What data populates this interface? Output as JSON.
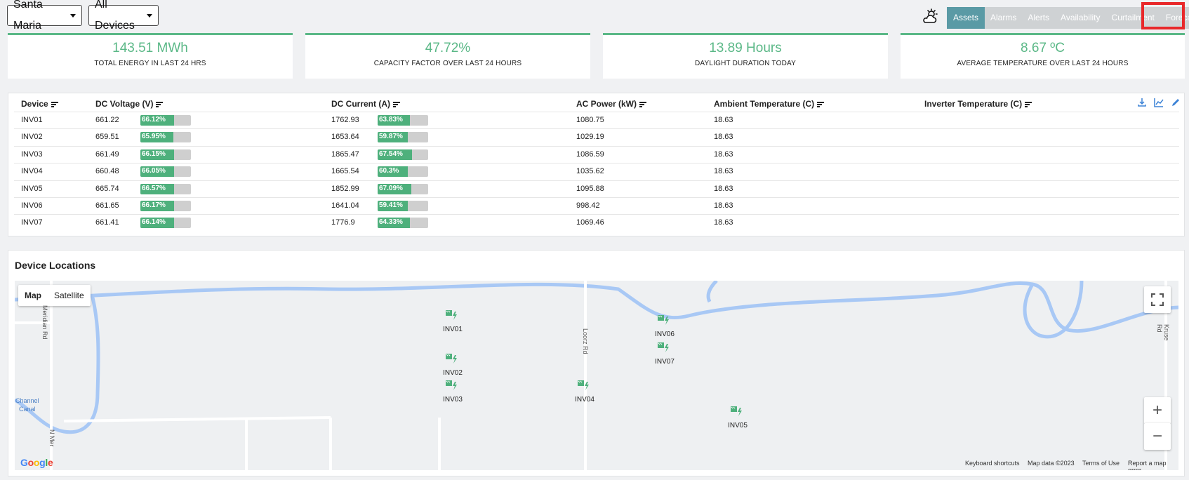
{
  "filters": {
    "site": "Santa Maria",
    "devices": "All Devices"
  },
  "nav": {
    "weather_icon": "weather-cloud-sun-icon",
    "tabs": [
      "Assets",
      "Alarms",
      "Alerts",
      "Availability",
      "Curtailment",
      "Forecast"
    ],
    "active_tab": "Assets",
    "highlighted_tab": "Forecast"
  },
  "kpis": [
    {
      "value": "143.51 MWh",
      "label": "TOTAL ENERGY IN LAST 24 HRS"
    },
    {
      "value": "47.72%",
      "label": "CAPACITY FACTOR OVER LAST 24 HOURS"
    },
    {
      "value": "13.89 Hours",
      "label": "DAYLIGHT DURATION TODAY"
    },
    {
      "value": "8.67 ºC",
      "label": "AVERAGE TEMPERATURE OVER LAST 24 HOURS"
    }
  ],
  "table": {
    "headers": [
      "Device",
      "DC Voltage (V)",
      "DC Current (A)",
      "AC Power (kW)",
      "Ambient Temperature (C)",
      "Inverter Temperature (C)"
    ],
    "rows": [
      {
        "device": "INV01",
        "dc_voltage": "661.22",
        "dc_voltage_pct": "66.12%",
        "dc_current": "1762.93",
        "dc_current_pct": "63.83%",
        "ac_power": "1080.75",
        "ambient": "18.63",
        "inverter": ""
      },
      {
        "device": "INV02",
        "dc_voltage": "659.51",
        "dc_voltage_pct": "65.95%",
        "dc_current": "1653.64",
        "dc_current_pct": "59.87%",
        "ac_power": "1029.19",
        "ambient": "18.63",
        "inverter": ""
      },
      {
        "device": "INV03",
        "dc_voltage": "661.49",
        "dc_voltage_pct": "66.15%",
        "dc_current": "1865.47",
        "dc_current_pct": "67.54%",
        "ac_power": "1086.59",
        "ambient": "18.63",
        "inverter": ""
      },
      {
        "device": "INV04",
        "dc_voltage": "660.48",
        "dc_voltage_pct": "66.05%",
        "dc_current": "1665.54",
        "dc_current_pct": "60.3%",
        "ac_power": "1035.62",
        "ambient": "18.63",
        "inverter": ""
      },
      {
        "device": "INV05",
        "dc_voltage": "665.74",
        "dc_voltage_pct": "66.57%",
        "dc_current": "1852.99",
        "dc_current_pct": "67.09%",
        "ac_power": "1095.88",
        "ambient": "18.63",
        "inverter": ""
      },
      {
        "device": "INV06",
        "dc_voltage": "661.65",
        "dc_voltage_pct": "66.17%",
        "dc_current": "1641.04",
        "dc_current_pct": "59.41%",
        "ac_power": "998.42",
        "ambient": "18.63",
        "inverter": ""
      },
      {
        "device": "INV07",
        "dc_voltage": "661.41",
        "dc_voltage_pct": "66.14%",
        "dc_current": "1776.9",
        "dc_current_pct": "64.33%",
        "ac_power": "1069.46",
        "ambient": "18.63",
        "inverter": ""
      }
    ],
    "toolbar_icons": [
      "download-icon",
      "chart-line-icon",
      "edit-pencil-icon"
    ]
  },
  "map": {
    "title": "Device Locations",
    "type_map": "Map",
    "type_satellite": "Satellite",
    "markers": [
      "INV01",
      "INV02",
      "INV03",
      "INV04",
      "INV05",
      "INV06",
      "INV07"
    ],
    "road_labels": [
      "Meridian Rd",
      "Loorz Rd",
      "Kruse Rd",
      "Channel",
      "Canal",
      "N Mer"
    ],
    "google": "Google",
    "attribution": [
      "Keyboard shortcuts",
      "Map data ©2023",
      "Terms of Use",
      "Report a map error"
    ],
    "zoom_in": "+",
    "zoom_out": "−"
  },
  "colors": {
    "accent_green": "#5bb887",
    "bar_fill": "#4eb07c",
    "active_tab": "#5a9aa5",
    "highlight_red": "#e8282a",
    "water": "#9ec5fe"
  }
}
